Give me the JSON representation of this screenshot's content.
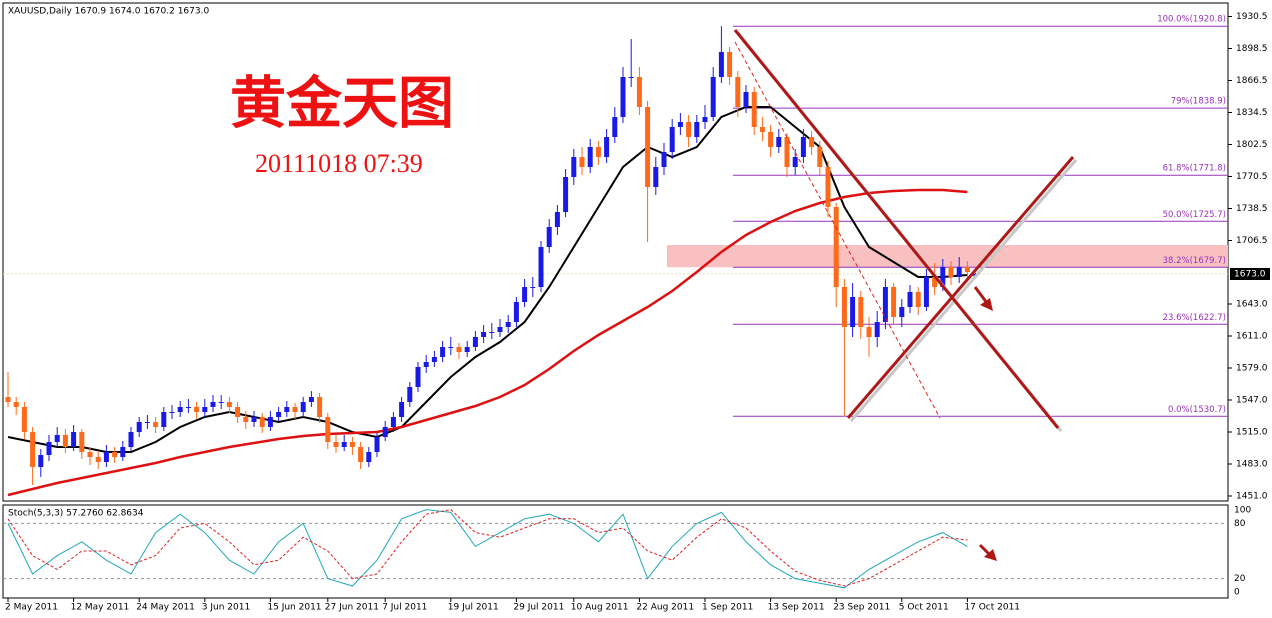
{
  "chart_data": {
    "type": "candlestick",
    "header": "XAUUSD,Daily  1670.9 1674.0 1670.2 1673.0",
    "title": "黄金天图",
    "subtitle": "20111018 07:39",
    "ylim": [
      1446,
      1944
    ],
    "yticks": [
      1930.5,
      1898.5,
      1866.5,
      1834.5,
      1802.5,
      1770.5,
      1738.5,
      1706.5,
      {
        "value": 1643,
        "label": "1643.0"
      },
      {
        "value": 1611,
        "label": "1611.0"
      },
      {
        "value": 1579,
        "label": "1579.0"
      },
      {
        "value": 1547,
        "label": "1547.0"
      },
      {
        "value": 1515,
        "label": "1515.0"
      },
      {
        "value": 1483,
        "label": "1483.0"
      },
      {
        "value": 1451,
        "label": "1451.0"
      }
    ],
    "last_price": {
      "value": 1673,
      "label": "1673.0"
    },
    "xticks": [
      {
        "value": 0,
        "label": "2 May 2011"
      },
      {
        "value": 8,
        "label": "12 May 2011"
      },
      {
        "value": 16,
        "label": "24 May 2011"
      },
      {
        "value": 24,
        "label": "3 Jun 2011"
      },
      {
        "value": 32,
        "label": "15 Jun 2011"
      },
      {
        "value": 39,
        "label": "27 Jun 2011"
      },
      {
        "value": 46,
        "label": "7 Jul 2011"
      },
      {
        "value": 54,
        "label": "19 Jul 2011"
      },
      {
        "value": 62,
        "label": "29 Jul 2011"
      },
      {
        "value": 69,
        "label": "10 Aug 2011"
      },
      {
        "value": 77,
        "label": "22 Aug 2011"
      },
      {
        "value": 85,
        "label": "1 Sep 2011"
      },
      {
        "value": 93,
        "label": "13 Sep 2011"
      },
      {
        "value": 101,
        "label": "23 Sep 2011"
      },
      {
        "value": 109,
        "label": "5 Oct 2011"
      },
      {
        "value": 117,
        "label": "17 Oct 2011"
      }
    ],
    "up_color": "#1a1ae6",
    "down_color": "#ff6a1a",
    "candles": [
      [
        1550,
        1575,
        1540,
        1545
      ],
      [
        1545,
        1550,
        1532,
        1540
      ],
      [
        1540,
        1545,
        1508,
        1515
      ],
      [
        1515,
        1520,
        1462,
        1480
      ],
      [
        1480,
        1498,
        1470,
        1492
      ],
      [
        1492,
        1512,
        1486,
        1505
      ],
      [
        1505,
        1520,
        1500,
        1512
      ],
      [
        1512,
        1518,
        1494,
        1500
      ],
      [
        1500,
        1522,
        1496,
        1515
      ],
      [
        1515,
        1518,
        1488,
        1495
      ],
      [
        1495,
        1500,
        1482,
        1490
      ],
      [
        1490,
        1496,
        1478,
        1485
      ],
      [
        1485,
        1502,
        1480,
        1495
      ],
      [
        1495,
        1500,
        1484,
        1490
      ],
      [
        1490,
        1506,
        1486,
        1500
      ],
      [
        1500,
        1520,
        1496,
        1515
      ],
      [
        1515,
        1530,
        1510,
        1525
      ],
      [
        1525,
        1532,
        1518,
        1525
      ],
      [
        1525,
        1530,
        1514,
        1520
      ],
      [
        1520,
        1540,
        1516,
        1535
      ],
      [
        1535,
        1542,
        1528,
        1535
      ],
      [
        1535,
        1546,
        1530,
        1540
      ],
      [
        1540,
        1548,
        1534,
        1540
      ],
      [
        1540,
        1545,
        1528,
        1535
      ],
      [
        1535,
        1548,
        1530,
        1540
      ],
      [
        1540,
        1552,
        1535,
        1545
      ],
      [
        1545,
        1552,
        1538,
        1545
      ],
      [
        1545,
        1550,
        1534,
        1540
      ],
      [
        1540,
        1545,
        1524,
        1530
      ],
      [
        1530,
        1536,
        1518,
        1525
      ],
      [
        1525,
        1536,
        1520,
        1530
      ],
      [
        1530,
        1534,
        1514,
        1520
      ],
      [
        1520,
        1536,
        1516,
        1530
      ],
      [
        1530,
        1540,
        1526,
        1535
      ],
      [
        1535,
        1546,
        1530,
        1540
      ],
      [
        1540,
        1544,
        1528,
        1535
      ],
      [
        1535,
        1550,
        1530,
        1545
      ],
      [
        1545,
        1556,
        1540,
        1550
      ],
      [
        1550,
        1554,
        1524,
        1530
      ],
      [
        1530,
        1534,
        1498,
        1505
      ],
      [
        1505,
        1512,
        1494,
        1500
      ],
      [
        1500,
        1512,
        1496,
        1505
      ],
      [
        1505,
        1510,
        1492,
        1500
      ],
      [
        1500,
        1505,
        1478,
        1485
      ],
      [
        1485,
        1500,
        1480,
        1495
      ],
      [
        1495,
        1514,
        1490,
        1510
      ],
      [
        1510,
        1526,
        1506,
        1520
      ],
      [
        1520,
        1535,
        1515,
        1530
      ],
      [
        1530,
        1550,
        1525,
        1545
      ],
      [
        1545,
        1565,
        1540,
        1560
      ],
      [
        1560,
        1585,
        1555,
        1580
      ],
      [
        1580,
        1592,
        1574,
        1585
      ],
      [
        1585,
        1596,
        1580,
        1590
      ],
      [
        1590,
        1606,
        1585,
        1600
      ],
      [
        1600,
        1610,
        1592,
        1600
      ],
      [
        1600,
        1604,
        1588,
        1595
      ],
      [
        1595,
        1606,
        1590,
        1600
      ],
      [
        1600,
        1616,
        1596,
        1610
      ],
      [
        1610,
        1622,
        1604,
        1615
      ],
      [
        1615,
        1624,
        1608,
        1615
      ],
      [
        1615,
        1628,
        1610,
        1620
      ],
      [
        1620,
        1632,
        1614,
        1625
      ],
      [
        1625,
        1650,
        1620,
        1645
      ],
      [
        1645,
        1668,
        1640,
        1660
      ],
      [
        1660,
        1670,
        1650,
        1660
      ],
      [
        1660,
        1706,
        1655,
        1700
      ],
      [
        1700,
        1728,
        1694,
        1720
      ],
      [
        1720,
        1742,
        1712,
        1735
      ],
      [
        1735,
        1778,
        1730,
        1770
      ],
      [
        1770,
        1798,
        1762,
        1790
      ],
      [
        1790,
        1800,
        1772,
        1780
      ],
      [
        1780,
        1808,
        1774,
        1800
      ],
      [
        1800,
        1806,
        1782,
        1790
      ],
      [
        1790,
        1818,
        1784,
        1810
      ],
      [
        1810,
        1840,
        1804,
        1830
      ],
      [
        1830,
        1880,
        1824,
        1870
      ],
      [
        1870,
        1908,
        1860,
        1870
      ],
      [
        1870,
        1880,
        1832,
        1840
      ],
      [
        1840,
        1846,
        1705,
        1760
      ],
      [
        1760,
        1790,
        1752,
        1780
      ],
      [
        1780,
        1804,
        1772,
        1795
      ],
      [
        1795,
        1828,
        1788,
        1820
      ],
      [
        1820,
        1834,
        1812,
        1825
      ],
      [
        1825,
        1832,
        1800,
        1810
      ],
      [
        1810,
        1832,
        1804,
        1825
      ],
      [
        1825,
        1842,
        1818,
        1830
      ],
      [
        1830,
        1880,
        1826,
        1870
      ],
      [
        1870,
        1920.8,
        1864,
        1895
      ],
      [
        1895,
        1900,
        1862,
        1870
      ],
      [
        1870,
        1876,
        1830,
        1840
      ],
      [
        1840,
        1862,
        1834,
        1855
      ],
      [
        1855,
        1860,
        1812,
        1820
      ],
      [
        1820,
        1830,
        1806,
        1815
      ],
      [
        1815,
        1822,
        1790,
        1800
      ],
      [
        1800,
        1818,
        1794,
        1810
      ],
      [
        1810,
        1814,
        1770,
        1780
      ],
      [
        1780,
        1798,
        1772,
        1790
      ],
      [
        1790,
        1818,
        1784,
        1810
      ],
      [
        1810,
        1816,
        1792,
        1800
      ],
      [
        1800,
        1806,
        1772,
        1780
      ],
      [
        1780,
        1786,
        1730,
        1740
      ],
      [
        1740,
        1744,
        1640,
        1660
      ],
      [
        1660,
        1668,
        1530.7,
        1620
      ],
      [
        1620,
        1664,
        1610,
        1650
      ],
      [
        1650,
        1656,
        1608,
        1620
      ],
      [
        1620,
        1630,
        1590,
        1610
      ],
      [
        1610,
        1636,
        1600,
        1625
      ],
      [
        1625,
        1668,
        1618,
        1660
      ],
      [
        1660,
        1664,
        1622,
        1630
      ],
      [
        1630,
        1648,
        1620,
        1640
      ],
      [
        1640,
        1662,
        1634,
        1655
      ],
      [
        1655,
        1660,
        1632,
        1640
      ],
      [
        1640,
        1678,
        1636,
        1670
      ],
      [
        1670,
        1684,
        1652,
        1660
      ],
      [
        1660,
        1688,
        1656,
        1680
      ],
      [
        1680,
        1686,
        1662,
        1670
      ],
      [
        1670,
        1690,
        1664,
        1680
      ],
      [
        1680,
        1686,
        1668,
        1675
      ],
      [
        1670.9,
        1674,
        1670.2,
        1673
      ]
    ],
    "lines": [
      {
        "color": "#000000",
        "width": 2,
        "x": [
          0,
          3,
          6,
          9,
          12,
          15,
          18,
          21,
          24,
          27,
          30,
          33,
          36,
          39,
          42,
          45,
          48,
          51,
          54,
          57,
          60,
          63,
          66,
          69,
          72,
          75,
          78,
          81,
          84,
          87,
          90,
          93,
          96,
          99,
          102,
          105,
          108,
          111,
          114,
          117
        ],
        "values": [
          1510,
          1505,
          1500,
          1500,
          1495,
          1495,
          1505,
          1520,
          1530,
          1535,
          1530,
          1525,
          1530,
          1525,
          1515,
          1510,
          1520,
          1545,
          1570,
          1590,
          1605,
          1625,
          1660,
          1700,
          1740,
          1780,
          1800,
          1790,
          1800,
          1830,
          1840,
          1840,
          1820,
          1800,
          1740,
          1700,
          1685,
          1670,
          1670,
          1672
        ]
      },
      {
        "color": "#dd1111",
        "width": 2.5,
        "x": [
          0,
          3,
          6,
          9,
          12,
          15,
          18,
          21,
          24,
          27,
          30,
          33,
          36,
          39,
          42,
          45,
          48,
          51,
          54,
          57,
          60,
          63,
          66,
          69,
          72,
          75,
          78,
          81,
          84,
          87,
          90,
          93,
          96,
          99,
          102,
          105,
          108,
          111,
          114,
          117
        ],
        "values": [
          1452,
          1458,
          1464,
          1469,
          1474,
          1479,
          1484,
          1490,
          1495,
          1500,
          1504,
          1508,
          1511,
          1513,
          1514,
          1515,
          1520,
          1527,
          1534,
          1541,
          1550,
          1562,
          1578,
          1596,
          1612,
          1626,
          1640,
          1656,
          1675,
          1695,
          1712,
          1725,
          1736,
          1744,
          1750,
          1754,
          1756,
          1757,
          1757,
          1755
        ]
      }
    ],
    "fib_levels": [
      {
        "value": 1920.8,
        "label": "100.0%(1920.8)"
      },
      {
        "value": 1838.9,
        "label": "79%(1838.9)"
      },
      {
        "value": 1771.8,
        "label": "61.8%(1771.8)"
      },
      {
        "value": 1725.7,
        "label": "50.0%(1725.7)"
      },
      {
        "value": 1679.7,
        "label": "38.2%(1679.7)"
      },
      {
        "value": 1622.7,
        "label": "23.6%(1622.7)"
      },
      {
        "value": 1530.7,
        "label": "0.0%(1530.7)"
      }
    ],
    "fib_color": "#9933bb",
    "highlight_band": [
      1679.7,
      1702
    ],
    "highlight_color": "#f8c0c0",
    "stochastic": {
      "header": "Stoch(5,3,3) 57.2760 62.8634",
      "ylim": [
        0,
        100
      ],
      "yticks": [
        100,
        80,
        20,
        0
      ],
      "x": [
        0,
        3,
        6,
        9,
        12,
        15,
        18,
        21,
        24,
        27,
        30,
        33,
        36,
        39,
        42,
        45,
        48,
        51,
        54,
        57,
        60,
        63,
        66,
        69,
        72,
        75,
        78,
        81,
        84,
        87,
        90,
        93,
        96,
        99,
        102,
        105,
        108,
        111,
        114,
        117
      ],
      "series": [
        {
          "color": "#20a8b8",
          "dashed": false,
          "values": [
            80,
            25,
            45,
            60,
            40,
            25,
            70,
            90,
            70,
            40,
            25,
            60,
            80,
            20,
            12,
            40,
            85,
            95,
            92,
            55,
            70,
            85,
            90,
            80,
            60,
            90,
            20,
            55,
            80,
            92,
            60,
            35,
            20,
            15,
            10,
            30,
            45,
            60,
            70,
            55
          ]
        },
        {
          "color": "#e02020",
          "dashed": true,
          "values": [
            85,
            45,
            30,
            50,
            50,
            35,
            45,
            75,
            80,
            60,
            35,
            40,
            65,
            50,
            20,
            25,
            60,
            90,
            95,
            70,
            65,
            75,
            85,
            85,
            70,
            75,
            50,
            40,
            65,
            85,
            75,
            50,
            28,
            18,
            12,
            20,
            35,
            50,
            65,
            62
          ]
        }
      ]
    }
  }
}
